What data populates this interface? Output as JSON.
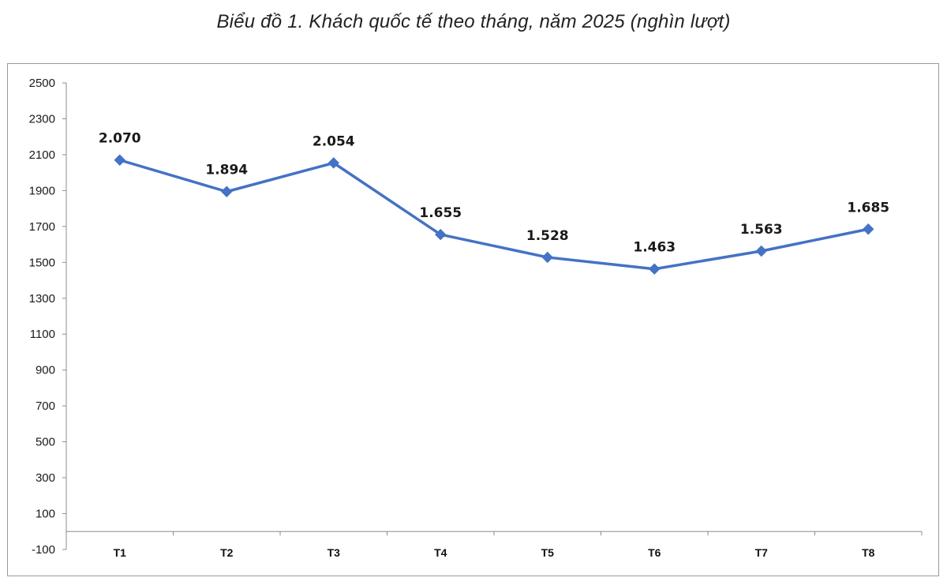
{
  "title": "Biểu đồ 1. Khách quốc tế theo tháng, năm 2025 (nghìn lượt)",
  "chart_data": {
    "type": "line",
    "title": "Biểu đồ 1. Khách quốc tế theo tháng, năm 2025 (nghìn lượt)",
    "xlabel": "",
    "ylabel": "",
    "categories": [
      "T1",
      "T2",
      "T3",
      "T4",
      "T5",
      "T6",
      "T7",
      "T8"
    ],
    "series": [
      {
        "values": [
          2070,
          1894,
          2054,
          1655,
          1528,
          1463,
          1563,
          1685
        ],
        "labels": [
          "2.070",
          "1.894",
          "2.054",
          "1.655",
          "1.528",
          "1.463",
          "1.563",
          "1.685"
        ],
        "color": "#4472C4",
        "marker": "diamond"
      }
    ],
    "highlight_label_index": 7,
    "highlight_label_color": "#E03C31",
    "ylim": [
      -100,
      2500
    ],
    "yticks": [
      -100,
      100,
      300,
      500,
      700,
      900,
      1100,
      1300,
      1500,
      1700,
      1900,
      2100,
      2300,
      2500
    ],
    "ytick_labels": [
      "-100",
      "100",
      "300",
      "500",
      "700",
      "900",
      "1100",
      "1300",
      "1500",
      "1700",
      "1900",
      "2100",
      "2300",
      "2500"
    ],
    "baseline": 0,
    "grid": false,
    "legend": "none"
  }
}
